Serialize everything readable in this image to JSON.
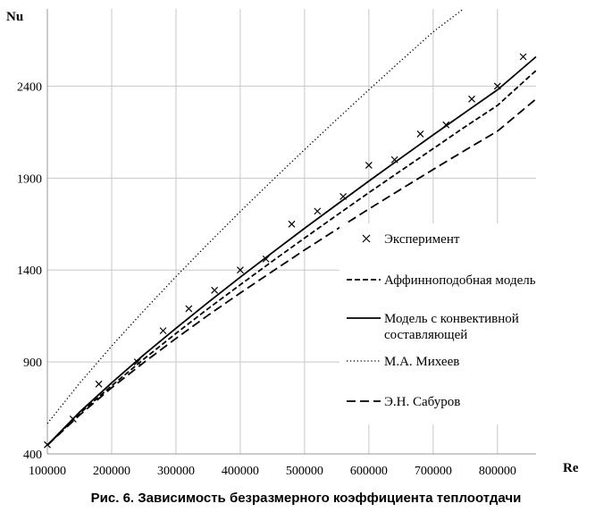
{
  "caption": "Рис. 6. Зависимость безразмерного коэффициента теплоотдачи",
  "chart_data": {
    "type": "line",
    "title": "",
    "xlabel": "Re",
    "ylabel": "Nu",
    "xlim": [
      100000,
      860000
    ],
    "ylim": [
      400,
      2820
    ],
    "x_ticks": [
      100000,
      200000,
      300000,
      400000,
      500000,
      600000,
      700000,
      800000
    ],
    "x_tick_labels": [
      "100000",
      "200000",
      "300000",
      "400000",
      "500000",
      "600000",
      "700000",
      "800000"
    ],
    "y_ticks": [
      400,
      900,
      1400,
      1900,
      2400
    ],
    "y_tick_labels": [
      "400",
      "900",
      "1400",
      "1900",
      "2400"
    ],
    "grid": true,
    "legend_position": "right",
    "series": [
      {
        "name": "Эксперимент",
        "style": "markers-x",
        "x": [
          100000,
          140000,
          180000,
          240000,
          280000,
          320000,
          360000,
          400000,
          440000,
          480000,
          520000,
          560000,
          600000,
          640000,
          680000,
          720000,
          760000,
          800000,
          840000
        ],
        "y": [
          450,
          590,
          780,
          900,
          1070,
          1190,
          1290,
          1400,
          1460,
          1650,
          1720,
          1800,
          1970,
          2000,
          2140,
          2190,
          2330,
          2400,
          2560
        ]
      },
      {
        "name": "Аффинноподобная модель",
        "style": "dashed",
        "x": [
          100000,
          150000,
          200000,
          250000,
          300000,
          350000,
          400000,
          450000,
          500000,
          550000,
          600000,
          650000,
          700000,
          750000,
          800000,
          860000
        ],
        "y": [
          447,
          619,
          771,
          916,
          1055,
          1190,
          1320,
          1448,
          1574,
          1698,
          1821,
          1941,
          2060,
          2180,
          2295,
          2485
        ]
      },
      {
        "name": "Модель с конвективной составляющей",
        "style": "solid",
        "x": [
          100000,
          150000,
          200000,
          250000,
          300000,
          350000,
          400000,
          450000,
          500000,
          550000,
          600000,
          650000,
          700000,
          750000,
          800000,
          860000
        ],
        "y": [
          447,
          627,
          787,
          939,
          1083,
          1224,
          1361,
          1495,
          1627,
          1756,
          1884,
          2010,
          2135,
          2258,
          2380,
          2560
        ]
      },
      {
        "name": "М.А. Михеев",
        "style": "dotted",
        "x": [
          100000,
          150000,
          200000,
          250000,
          300000,
          350000,
          400000,
          450000,
          500000,
          550000,
          600000,
          650000,
          700000,
          747000
        ],
        "y": [
          565,
          784,
          987,
          1179,
          1364,
          1543,
          1718,
          1888,
          2055,
          2219,
          2380,
          2539,
          2695,
          2820
        ]
      },
      {
        "name": "Э.Н. Сабуров",
        "style": "long-dashed",
        "x": [
          100000,
          150000,
          200000,
          250000,
          300000,
          350000,
          400000,
          450000,
          500000,
          550000,
          600000,
          650000,
          700000,
          750000,
          800000,
          860000
        ],
        "y": [
          447,
          611,
          760,
          897,
          1028,
          1154,
          1275,
          1393,
          1509,
          1621,
          1732,
          1840,
          1947,
          2052,
          2155,
          2330
        ]
      }
    ]
  }
}
